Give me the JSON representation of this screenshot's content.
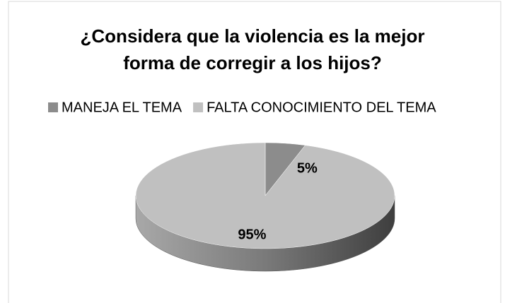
{
  "chart_data": {
    "type": "pie",
    "title": "¿Considera que la violencia es la mejor forma de corregir a los hijos?",
    "categories": [
      "MANEJA EL TEMA",
      "FALTA CONOCIMIENTO DEL TEMA"
    ],
    "values": [
      5,
      95
    ],
    "value_labels": [
      "5%",
      "95%"
    ],
    "colors": [
      "#8c8c8c",
      "#c0c0c0"
    ],
    "legend": "top"
  }
}
